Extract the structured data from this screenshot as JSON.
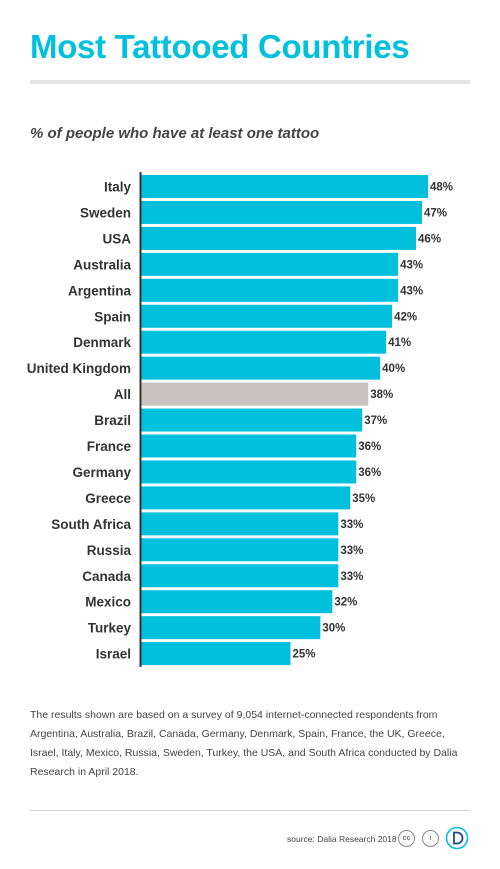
{
  "header": {
    "title": "Most Tattooed Countries"
  },
  "chart_data": {
    "type": "bar",
    "orientation": "horizontal",
    "title": "Most Tattooed Countries",
    "subtitle": "% of people who have at least one tattoo",
    "categories": [
      "Italy",
      "Sweden",
      "USA",
      "Australia",
      "Argentina",
      "Spain",
      "Denmark",
      "United Kingdom",
      "All",
      "Brazil",
      "France",
      "Germany",
      "Greece",
      "South Africa",
      "Russia",
      "Canada",
      "Mexico",
      "Turkey",
      "Israel"
    ],
    "values": [
      48,
      47,
      46,
      43,
      43,
      42,
      41,
      40,
      38,
      37,
      36,
      36,
      35,
      33,
      33,
      33,
      32,
      30,
      25
    ],
    "value_labels": [
      "48%",
      "47%",
      "46%",
      "43%",
      "43%",
      "42%",
      "41%",
      "40%",
      "38%",
      "37%",
      "36%",
      "36%",
      "35%",
      "33%",
      "33%",
      "33%",
      "32%",
      "30%",
      "25%"
    ],
    "highlight_category": "All",
    "xlim": [
      0,
      48
    ],
    "grid": false,
    "colors": {
      "bar": "#00c0de",
      "highlight": "#c8c3bf",
      "axis": "#333333",
      "label": "#333333"
    }
  },
  "footnote": "The results shown are based on a survey of 9,054 internet-connected respondents from Argentina, Australia, Brazil, Canada, Germany, Denmark, Spain, France, the UK, Greece, Israel, Italy, Mexico, Russia, Sweden, Turkey, the USA, and South Africa conducted by Dalia Research in April 2018.",
  "footer": {
    "source": "source: Dalia Research 2018",
    "cc_icon_text": "cc",
    "by_icon_text": "i",
    "icons": [
      "creative-commons-icon",
      "attribution-icon",
      "dalia-logo-icon"
    ]
  },
  "colors": {
    "accent": "#00c0de",
    "text": "#444444"
  }
}
